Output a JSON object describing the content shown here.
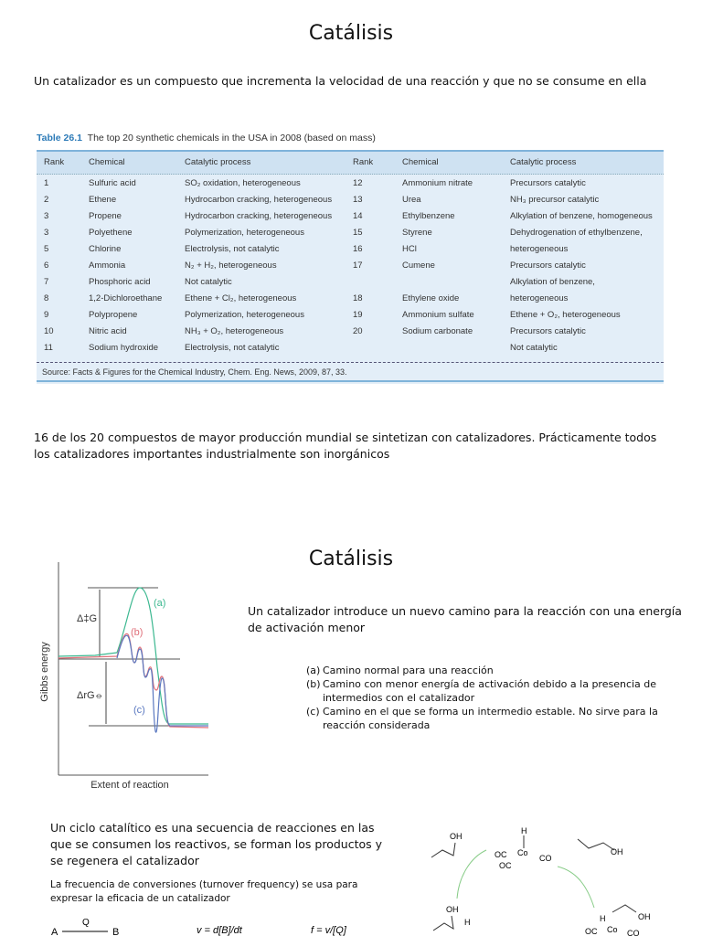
{
  "slide1": {
    "title": "Catálisis",
    "intro": "Un catalizador es un compuesto que incrementa la velocidad de una reacción y que no se consume en ella",
    "table": {
      "label": "Table 26.1",
      "caption": "The top 20 synthetic chemicals in the USA in 2008 (based on mass)",
      "headers": [
        "Rank",
        "Chemical",
        "Catalytic process",
        "Rank",
        "Chemical",
        "Catalytic process"
      ],
      "left_rows": [
        [
          "1",
          "Sulfuric acid",
          "SO₂ oxidation, heterogeneous"
        ],
        [
          "2",
          "Ethene",
          "Hydrocarbon cracking, heterogeneous"
        ],
        [
          "3",
          "Propene",
          "Hydrocarbon cracking, heterogeneous"
        ],
        [
          "3",
          "Polyethene",
          "Polymerization, heterogeneous"
        ],
        [
          "5",
          "Chlorine",
          "Electrolysis, not catalytic"
        ],
        [
          "6",
          "Ammonia",
          "N₂ + H₂, heterogeneous"
        ],
        [
          "7",
          "Phosphoric acid",
          "Not catalytic"
        ],
        [
          "8",
          "1,2-Dichloroethane",
          "Ethene + Cl₂, heterogeneous"
        ],
        [
          "9",
          "Polypropene",
          "Polymerization, heterogeneous"
        ],
        [
          "10",
          "Nitric acid",
          "NH₃ + O₂, heterogeneous"
        ],
        [
          "11",
          "Sodium hydroxide",
          "Electrolysis, not catalytic"
        ]
      ],
      "right_rows": [
        [
          "12",
          "Ammonium nitrate",
          "Precursors catalytic"
        ],
        [
          "13",
          "Urea",
          "NH₃ precursor catalytic"
        ],
        [
          "14",
          "Ethylbenzene",
          "Alkylation of benzene, homogeneous"
        ],
        [
          "15",
          "Styrene",
          "Dehydrogenation of ethylbenzene,"
        ],
        [
          "16",
          "HCl",
          "heterogeneous"
        ],
        [
          "17",
          "Cumene",
          "Precursors catalytic"
        ],
        [
          "",
          "",
          "Alkylation of benzene,"
        ],
        [
          "18",
          "Ethylene oxide",
          "heterogeneous"
        ],
        [
          "19",
          "Ammonium sulfate",
          "Ethene + O₂, heterogeneous"
        ],
        [
          "20",
          "Sodium carbonate",
          "Precursors catalytic"
        ],
        [
          "",
          "",
          "Not catalytic"
        ]
      ],
      "source": "Source: Facts & Figures for the Chemical Industry, Chem. Eng. News, 2009, 87, 33."
    },
    "paragraph": "16 de los 20 compuestos de mayor producción mundial se sintetizan con catalizadores. Prácticamente todos los catalizadores importantes industrialmente son inorgánicos"
  },
  "slide2": {
    "title": "Catálisis",
    "diagram": {
      "ylabel": "Gibbs energy",
      "xlabel": "Extent of reaction",
      "activation_label": "Δ‡G",
      "reaction_label": "ΔrG⦵",
      "curve_labels": [
        "(a)",
        "(b)",
        "(c)"
      ],
      "colors": {
        "a": "#3cb890",
        "b": "#e0707a",
        "c": "#5a78c0"
      }
    },
    "intro": "Un catalizador introduce un nuevo camino para la reacción con una energía de activación menor",
    "list": [
      {
        "marker": "(a)",
        "text": "Camino normal para una reacción"
      },
      {
        "marker": "(b)",
        "text": "Camino con menor energía de activación debido a la presencia de intermedios con el catalizador"
      },
      {
        "marker": "(c)",
        "text": "Camino en el que se forma un intermedio estable. No sirve para la reacción considerada"
      }
    ],
    "cycle_text": "Un ciclo catalítico es una secuencia de reacciones en las que se consumen los reactivos, se forman los productos y se regenera el catalizador",
    "tof_text": "La frecuencia de conversiones (turnover frequency) se usa para expresar la eficacia de un catalizador",
    "equations": {
      "reaction_left": "A",
      "reaction_catalyst": "Q",
      "reaction_right": "B",
      "rate": "v = d[B]/dt",
      "tof": "f = v/[Q]"
    },
    "cycle_labels": {
      "oh": "OH",
      "h": "H",
      "co": "CO",
      "oc": "OC",
      "metal": "Co"
    }
  }
}
